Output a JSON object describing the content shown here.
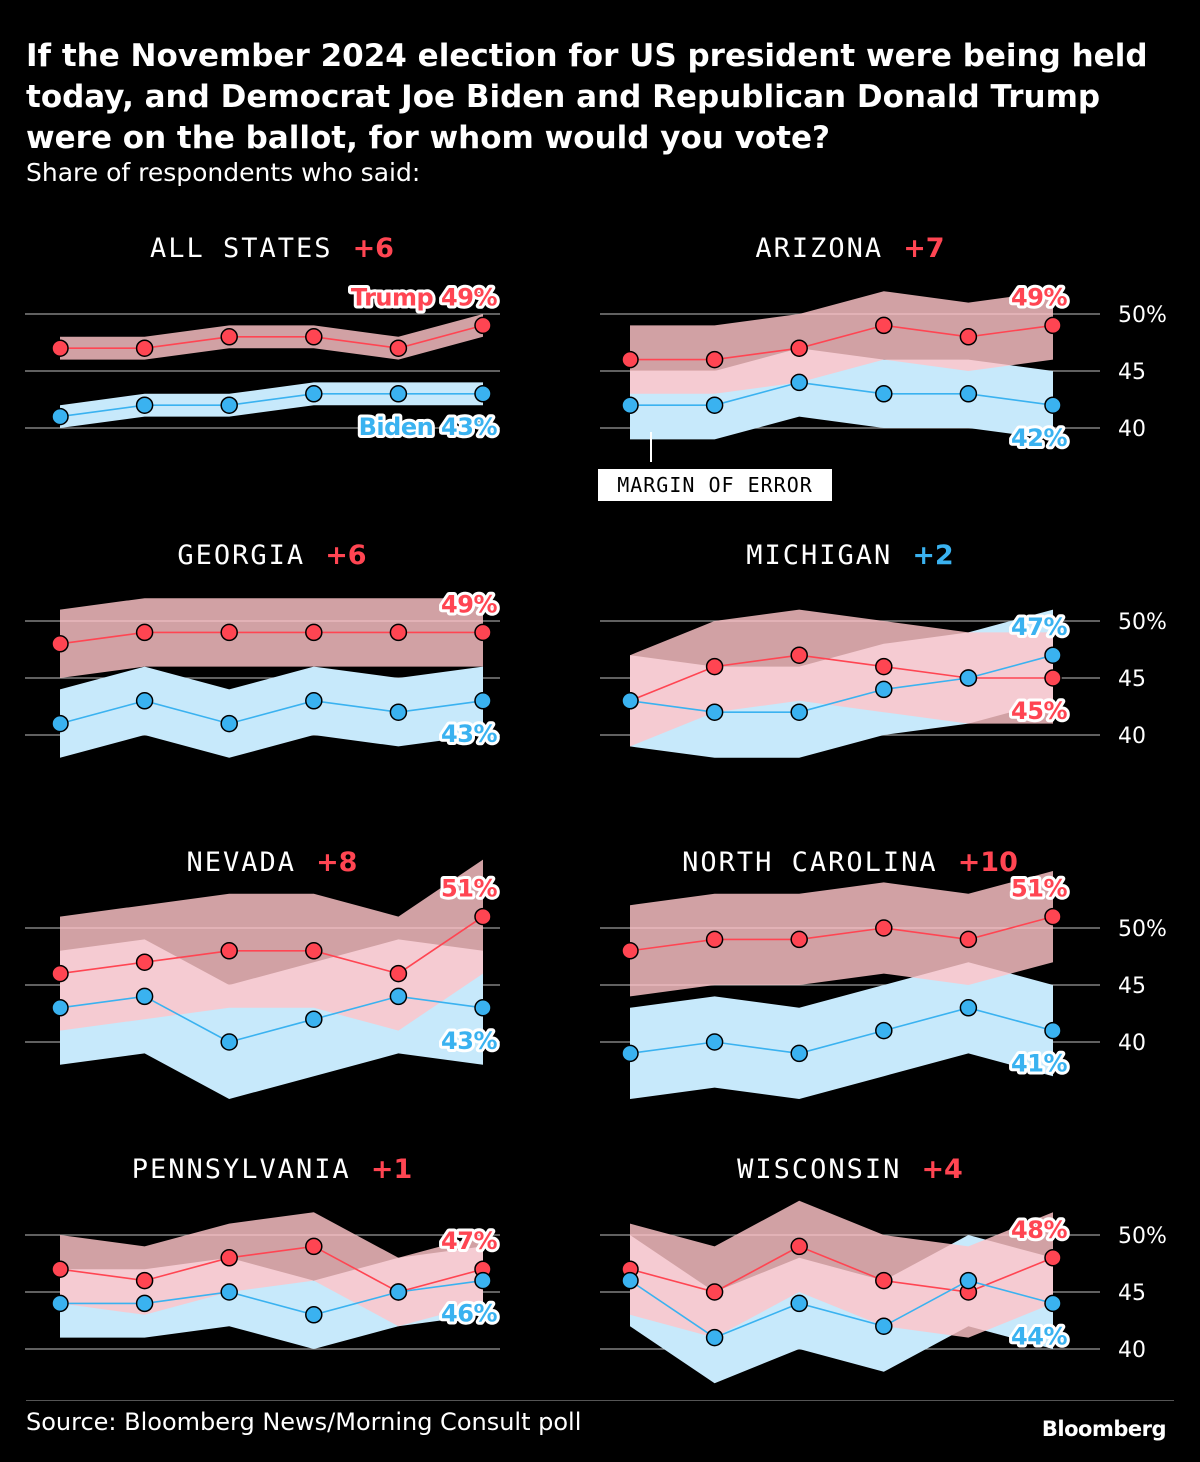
{
  "title": "If the November 2024 election for US president were being held today, and Democrat Joe Biden and Republican Donald Trump were on the ballot, for whom would you vote?",
  "subtitle": "Share of respondents who said:",
  "source": "Source: Bloomberg News/Morning Consult poll",
  "logo": "Bloomberg",
  "annotation": "MARGIN OF ERROR",
  "colors": {
    "trump": "#ff4552",
    "trump_band": "#ffc4c8",
    "biden": "#3ab2f0",
    "biden_band": "#c7e9fb",
    "overlap": "#d6c0d6",
    "grid": "#9a9a9a"
  },
  "chart_data": {
    "type": "line",
    "ylim": [
      40,
      50
    ],
    "yticks": [
      "50%",
      "45",
      "40"
    ],
    "ytick_values": [
      50,
      45,
      40
    ],
    "grid": true,
    "panels": [
      {
        "title": "ALL STATES",
        "margin": "+6",
        "leader": "trump",
        "moe": 1,
        "trump": [
          47,
          47,
          48,
          48,
          47,
          49
        ],
        "biden": [
          41,
          42,
          42,
          43,
          43,
          43
        ],
        "trump_label": "Trump 49%",
        "biden_label": "Biden 43%"
      },
      {
        "title": "ARIZONA",
        "margin": "+7",
        "leader": "trump",
        "moe": 3,
        "trump": [
          46,
          46,
          47,
          49,
          48,
          49
        ],
        "biden": [
          42,
          42,
          44,
          43,
          43,
          42
        ],
        "trump_label": "49%",
        "biden_label": "42%"
      },
      {
        "title": "GEORGIA",
        "margin": "+6",
        "leader": "trump",
        "moe": 3,
        "trump": [
          48,
          49,
          49,
          49,
          49,
          49
        ],
        "biden": [
          41,
          43,
          41,
          43,
          42,
          43
        ],
        "trump_label": "49%",
        "biden_label": "43%"
      },
      {
        "title": "MICHIGAN",
        "margin": "+2",
        "leader": "biden",
        "moe": 4,
        "trump": [
          43,
          46,
          47,
          46,
          45,
          45
        ],
        "biden": [
          43,
          42,
          42,
          44,
          45,
          47
        ],
        "trump_label": "45%",
        "biden_label": "47%"
      },
      {
        "title": "NEVADA",
        "margin": "+8",
        "leader": "trump",
        "moe": 5,
        "trump": [
          46,
          47,
          48,
          48,
          46,
          51
        ],
        "biden": [
          43,
          44,
          40,
          42,
          44,
          43
        ],
        "trump_label": "51%",
        "biden_label": "43%"
      },
      {
        "title": "NORTH CAROLINA",
        "margin": "+10",
        "leader": "trump",
        "moe": 4,
        "trump": [
          48,
          49,
          49,
          50,
          49,
          51
        ],
        "biden": [
          39,
          40,
          39,
          41,
          43,
          41
        ],
        "trump_label": "51%",
        "biden_label": "41%"
      },
      {
        "title": "PENNSYLVANIA",
        "margin": "+1",
        "leader": "trump",
        "moe": 3,
        "trump": [
          47,
          46,
          48,
          49,
          45,
          47
        ],
        "biden": [
          44,
          44,
          45,
          43,
          45,
          46
        ],
        "trump_label": "47%",
        "biden_label": "46%"
      },
      {
        "title": "WISCONSIN",
        "margin": "+4",
        "leader": "trump",
        "moe": 4,
        "trump": [
          47,
          45,
          49,
          46,
          45,
          48
        ],
        "biden": [
          46,
          41,
          44,
          42,
          46,
          44
        ],
        "trump_label": "48%",
        "biden_label": "44%"
      }
    ]
  }
}
